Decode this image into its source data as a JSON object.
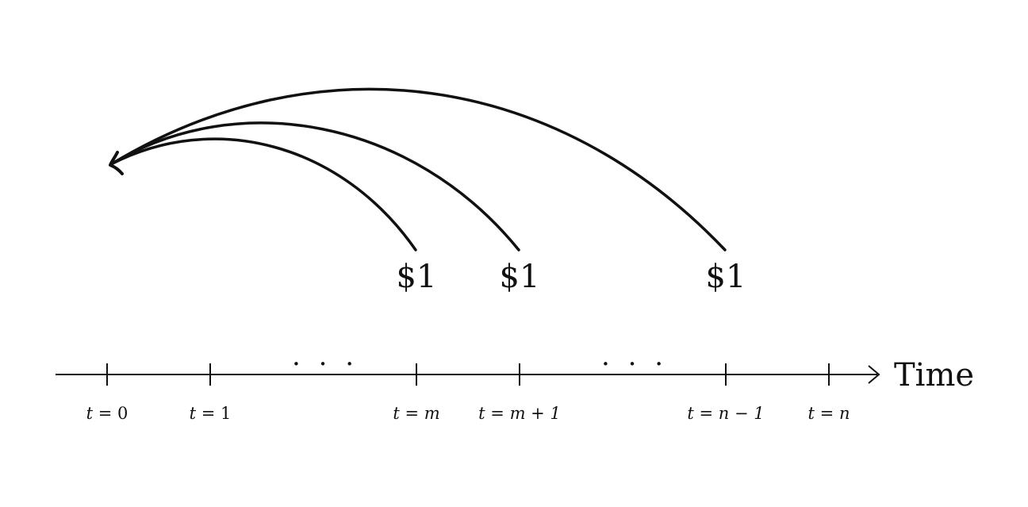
{
  "axis": {
    "title": "Time",
    "ellipsis": ". . ."
  },
  "ticks": [
    {
      "var": "t",
      "eq": " = ",
      "val": "0"
    },
    {
      "var": "t",
      "eq": " = ",
      "val": "1"
    },
    {
      "var": "t",
      "eq": " = ",
      "val": "m"
    },
    {
      "var": "t",
      "eq": " = ",
      "val": "m + 1"
    },
    {
      "var": "t",
      "eq": " = ",
      "val": "n − 1"
    },
    {
      "var": "t",
      "eq": " = ",
      "val": "n"
    }
  ],
  "payments": [
    {
      "label": "$1"
    },
    {
      "label": "$1"
    },
    {
      "label": "$1"
    }
  ]
}
